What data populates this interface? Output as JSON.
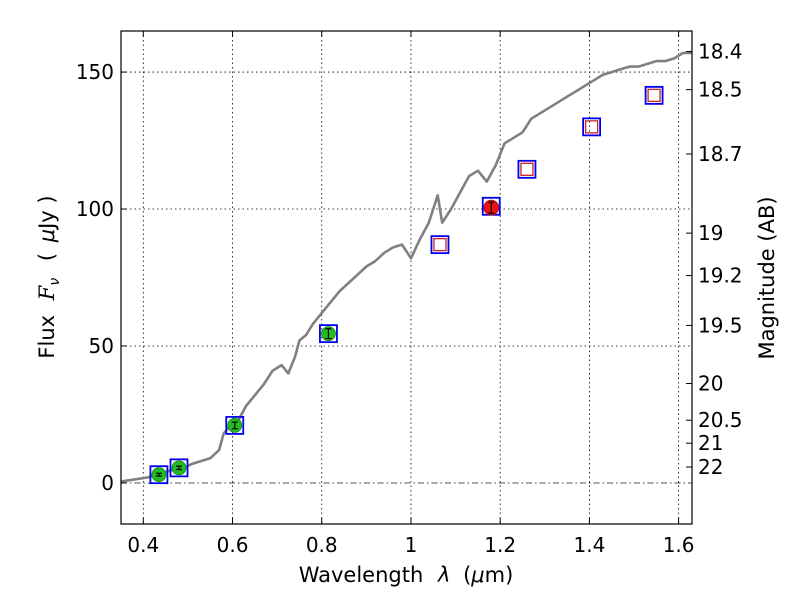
{
  "chart_data": {
    "type": "scatter",
    "xlabel_text": "Wavelength",
    "xlabel_symbol": "λ",
    "xlabel_unit_open": "(",
    "xlabel_unit_mu": "μ",
    "xlabel_unit_rest": "m)",
    "ylabel_text": "Flux",
    "ylabel_symbol": "F",
    "ylabel_subscript": "ν",
    "ylabel_unit_open": "(",
    "ylabel_unit_mu": "μ",
    "ylabel_unit_rest": "Jy )",
    "y2label": "Magnitude (AB)",
    "xlim": [
      0.35,
      1.63
    ],
    "ylim": [
      -15,
      165
    ],
    "x_ticks": [
      0.4,
      0.6,
      0.8,
      1.0,
      1.2,
      1.4,
      1.6
    ],
    "x_tick_labels": [
      "0.4",
      "0.6",
      "0.8",
      "1",
      "1.2",
      "1.4",
      "1.6"
    ],
    "y_ticks": [
      0,
      50,
      100,
      150
    ],
    "y_tick_labels": [
      "0",
      "50",
      "100",
      "150"
    ],
    "y2_ticks": [
      {
        "flux": 157.5,
        "label": "18.4"
      },
      {
        "flux": 143.6,
        "label": "18.5"
      },
      {
        "flux": 120.1,
        "label": "18.7"
      },
      {
        "flux": 91.2,
        "label": "19"
      },
      {
        "flux": 75.7,
        "label": "19.2"
      },
      {
        "flux": 57.5,
        "label": "19.5"
      },
      {
        "flux": 36.3,
        "label": "20"
      },
      {
        "flux": 22.9,
        "label": "20.5"
      },
      {
        "flux": 14.5,
        "label": "21"
      },
      {
        "flux": 5.8,
        "label": "22"
      }
    ],
    "grid": true,
    "colors": {
      "model_line": "#808080",
      "green_marker": "#22bb22",
      "red_marker": "#ee1111",
      "box_outline": "#0000ee",
      "open_square": "#cc2222",
      "errorbar": "#000000"
    },
    "model_spectrum": {
      "x": [
        0.35,
        0.37,
        0.39,
        0.41,
        0.43,
        0.45,
        0.47,
        0.49,
        0.51,
        0.53,
        0.55,
        0.57,
        0.58,
        0.59,
        0.61,
        0.63,
        0.65,
        0.67,
        0.69,
        0.71,
        0.725,
        0.74,
        0.75,
        0.765,
        0.78,
        0.8,
        0.82,
        0.84,
        0.86,
        0.88,
        0.9,
        0.92,
        0.94,
        0.96,
        0.98,
        1.0,
        1.02,
        1.04,
        1.06,
        1.07,
        1.09,
        1.11,
        1.13,
        1.15,
        1.17,
        1.19,
        1.21,
        1.23,
        1.25,
        1.27,
        1.29,
        1.31,
        1.33,
        1.35,
        1.37,
        1.39,
        1.41,
        1.43,
        1.45,
        1.47,
        1.49,
        1.51,
        1.53,
        1.55,
        1.57,
        1.59,
        1.61,
        1.63
      ],
      "y": [
        0.5,
        1,
        1.5,
        2,
        3,
        4,
        5,
        5.5,
        7,
        8,
        9,
        12,
        18,
        20,
        22,
        28,
        32,
        36,
        41,
        43,
        40,
        46,
        52,
        54,
        58,
        62,
        66,
        70,
        73,
        76,
        79,
        81,
        84,
        86,
        87,
        82,
        89,
        95,
        105,
        95,
        100,
        106,
        112,
        114,
        110,
        116,
        124,
        126,
        128,
        133,
        135,
        137,
        139,
        141,
        143,
        145,
        147,
        149,
        150,
        151,
        152,
        152,
        153,
        154,
        154,
        155,
        157,
        157
      ]
    },
    "detections": {
      "x": [
        0.435,
        0.48,
        0.605,
        0.815
      ],
      "y": [
        3,
        5.5,
        21,
        54.5
      ],
      "yerr": [
        0.5,
        0.6,
        1.2,
        1.8
      ],
      "color": "green"
    },
    "detection_red": {
      "x": 1.18,
      "y": 100.5,
      "yerr": 2.0,
      "color": "red"
    },
    "model_boxes": {
      "x": [
        0.435,
        0.48,
        0.605,
        0.815,
        1.065,
        1.18,
        1.26,
        1.405,
        1.545
      ],
      "y": [
        3,
        5.5,
        21,
        54.5,
        87,
        101,
        114.5,
        130,
        141.5
      ]
    },
    "open_squares": {
      "x": [
        1.065,
        1.26,
        1.405,
        1.545
      ],
      "y": [
        87,
        114.5,
        130,
        141.5
      ]
    },
    "zero_line": 0
  }
}
